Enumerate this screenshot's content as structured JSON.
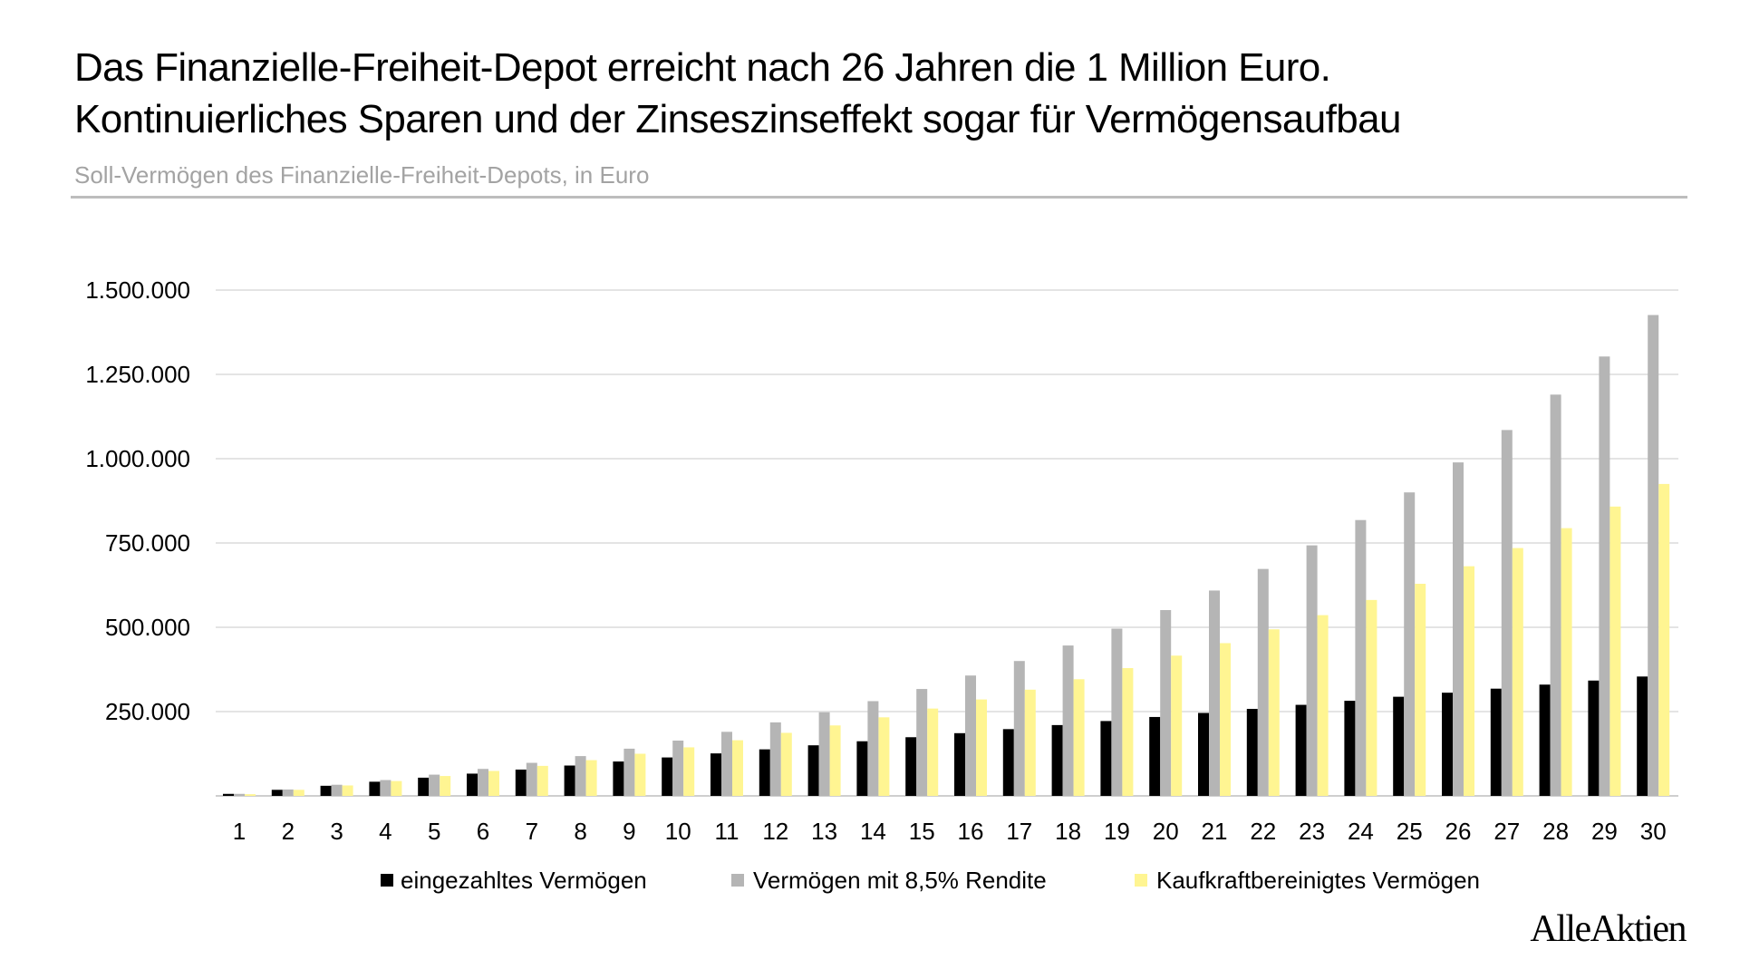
{
  "header": {
    "title_line1": "Das Finanzielle-Freiheit-Depot erreicht nach 26 Jahren die 1 Million Euro.",
    "title_line2": "Kontinuierliches Sparen und der Zinseszinseffekt sogar für Vermögensaufbau",
    "subtitle": "Soll-Vermögen des Finanzielle-Freiheit-Depots, in Euro"
  },
  "brand": "AlleAktien",
  "chart_data": {
    "type": "bar",
    "title": "Das Finanzielle-Freiheit-Depot erreicht nach 26 Jahren die 1 Million Euro. Kontinuierliches Sparen und der Zinseszinseffekt sogar für Vermögensaufbau",
    "subtitle": "Soll-Vermögen des Finanzielle-Freiheit-Depots, in Euro",
    "xlabel": "",
    "ylabel": "",
    "ylim": [
      0,
      1500000
    ],
    "grid": true,
    "legend_position": "bottom",
    "y_ticks": [
      250000,
      500000,
      750000,
      1000000,
      1250000,
      1500000
    ],
    "y_tick_labels": [
      "250.000",
      "500.000",
      "750.000",
      "1.000.000",
      "1.250.000",
      "1.500.000"
    ],
    "categories": [
      "1",
      "2",
      "3",
      "4",
      "5",
      "6",
      "7",
      "8",
      "9",
      "10",
      "11",
      "12",
      "13",
      "14",
      "15",
      "16",
      "17",
      "18",
      "19",
      "20",
      "21",
      "22",
      "23",
      "24",
      "25",
      "26",
      "27",
      "28",
      "29",
      "30"
    ],
    "series": [
      {
        "name": "eingezahltes Vermögen",
        "color": "#000000",
        "values": [
          6000,
          18000,
          30000,
          42000,
          54000,
          66000,
          78000,
          90000,
          102000,
          114000,
          126000,
          138000,
          150000,
          162000,
          174000,
          186000,
          198000,
          210000,
          222000,
          234000,
          246000,
          258000,
          270000,
          282000,
          294000,
          306000,
          318000,
          330000,
          342000,
          354000
        ]
      },
      {
        "name": "Vermögen mit 8,5% Rendite",
        "color": "#b5b5b5",
        "values": [
          6000,
          19000,
          33000,
          47000,
          63000,
          80000,
          98000,
          118000,
          140000,
          164000,
          190000,
          218000,
          248000,
          281000,
          317000,
          357000,
          400000,
          446000,
          496000,
          551000,
          609000,
          673000,
          743000,
          818000,
          900000,
          989000,
          1085000,
          1190000,
          1303000,
          1426000
        ]
      },
      {
        "name": "Kaufkraftbereinigtes Vermögen",
        "color": "#fff592",
        "values": [
          5000,
          18000,
          31000,
          44000,
          59000,
          74000,
          89000,
          106000,
          125000,
          144000,
          165000,
          187000,
          209000,
          233000,
          259000,
          286000,
          315000,
          346000,
          379000,
          416000,
          453000,
          494000,
          536000,
          581000,
          629000,
          681000,
          735000,
          794000,
          858000,
          925000
        ]
      }
    ]
  }
}
